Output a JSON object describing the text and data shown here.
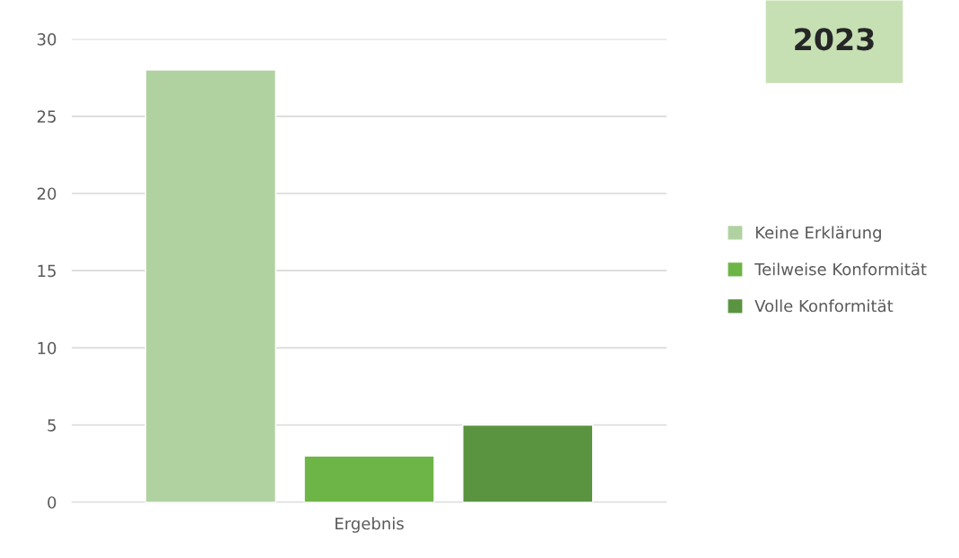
{
  "chart_data": {
    "type": "bar",
    "title": "2023",
    "categories": [
      "Ergebnis"
    ],
    "series": [
      {
        "name": "Keine Erklärung",
        "color": "#b0d2a0",
        "values": [
          28
        ]
      },
      {
        "name": "Teilweise Konformität",
        "color": "#6db546",
        "values": [
          3
        ]
      },
      {
        "name": "Volle Konformität",
        "color": "#5a9440",
        "values": [
          5
        ]
      }
    ],
    "ylim": [
      0,
      30
    ],
    "yticks": [
      0,
      5,
      10,
      15,
      20,
      25,
      30
    ],
    "grid": "y",
    "legend": "right"
  }
}
